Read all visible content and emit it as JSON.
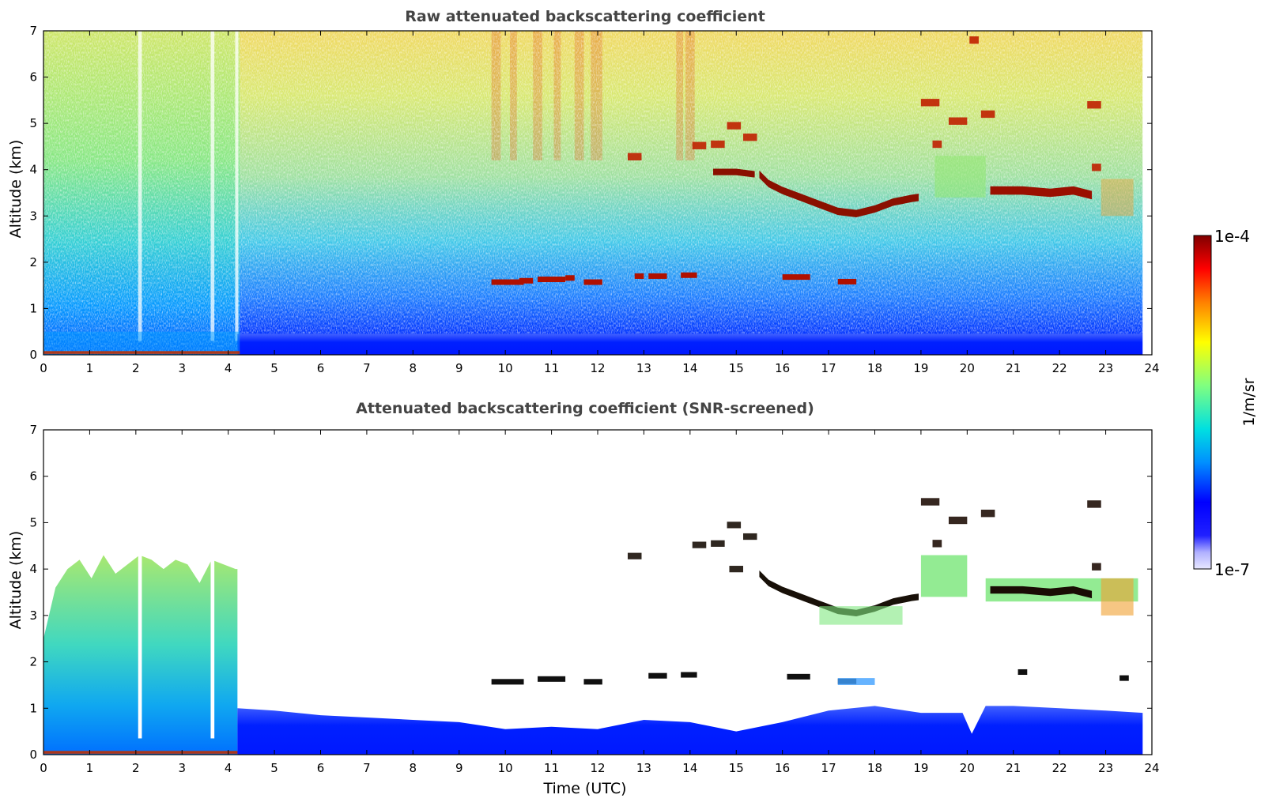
{
  "figure": {
    "panels": [
      {
        "title": "Raw attenuated backscattering coefficient",
        "xlabel": "",
        "ylabel": "Altitude (km)",
        "xlim": [
          0,
          24
        ],
        "ylim": [
          0,
          7
        ]
      },
      {
        "title": "Attenuated backscattering coefficient (SNR-screened)",
        "xlabel": "Time (UTC)",
        "ylabel": "Altitude (km)",
        "xlim": [
          0,
          24
        ],
        "ylim": [
          0,
          7
        ]
      }
    ],
    "colorbar": {
      "label": "1/m/sr",
      "max_label": "1e-4",
      "min_label": "1e-7",
      "colors": [
        "#e8e8ff",
        "#b0b0ff",
        "#0000ff",
        "#00a0ff",
        "#00e0e0",
        "#80ff80",
        "#ffff00",
        "#ff8000",
        "#ff0000",
        "#800000"
      ]
    }
  },
  "chart_data": [
    {
      "type": "heatmap",
      "title": "Raw attenuated backscattering coefficient",
      "xlabel": "",
      "ylabel": "Altitude (km)",
      "xlim": [
        0,
        24
      ],
      "ylim": [
        0,
        7
      ],
      "x_ticks": [
        0,
        1,
        2,
        3,
        4,
        5,
        6,
        7,
        8,
        9,
        10,
        11,
        12,
        13,
        14,
        15,
        16,
        17,
        18,
        19,
        20,
        21,
        22,
        23,
        24
      ],
      "y_ticks": [
        0,
        1,
        2,
        3,
        4,
        5,
        6,
        7
      ],
      "colorscale": "jet, log scale 1e-7 to 1e-4 1/m/sr",
      "features": [
        {
          "name": "near-surface boundary layer",
          "x": [
            0,
            23.8
          ],
          "y": [
            0,
            0.4
          ],
          "level": "blue"
        },
        {
          "name": "low cloud layer",
          "x": [
            9.7,
            14.2
          ],
          "y": [
            1.5,
            1.75
          ],
          "level": "dark red"
        },
        {
          "name": "mid cloud layer",
          "x": [
            14.2,
            19
          ],
          "y": [
            3.0,
            5.0
          ],
          "level": "dark red"
        },
        {
          "name": "upper cloud",
          "x": [
            19,
            23.8
          ],
          "y": [
            3.3,
            5.6
          ],
          "level": "red"
        }
      ]
    },
    {
      "type": "heatmap",
      "title": "Attenuated backscattering coefficient (SNR-screened)",
      "xlabel": "Time (UTC)",
      "ylabel": "Altitude (km)",
      "xlim": [
        0,
        24
      ],
      "ylim": [
        0,
        7
      ],
      "x_ticks": [
        0,
        1,
        2,
        3,
        4,
        5,
        6,
        7,
        8,
        9,
        10,
        11,
        12,
        13,
        14,
        15,
        16,
        17,
        18,
        19,
        20,
        21,
        22,
        23,
        24
      ],
      "y_ticks": [
        0,
        1,
        2,
        3,
        4,
        5,
        6,
        7
      ],
      "colorscale": "jet, log scale 1e-7 to 1e-4 1/m/sr",
      "features": [
        {
          "name": "early aerosol column",
          "x": [
            0,
            4.2
          ],
          "y": [
            0,
            4.3
          ],
          "level": "cyan-green"
        },
        {
          "name": "boundary layer",
          "x": [
            4.2,
            23.8
          ],
          "y": [
            0,
            1.0
          ],
          "level": "blue"
        },
        {
          "name": "low cloud layer",
          "x": [
            9.7,
            14.2
          ],
          "y": [
            1.5,
            1.75
          ],
          "level": "black/dark red"
        },
        {
          "name": "mid cloud layer",
          "x": [
            14.2,
            19
          ],
          "y": [
            3.0,
            5.0
          ],
          "level": "black/dark red"
        }
      ]
    }
  ]
}
